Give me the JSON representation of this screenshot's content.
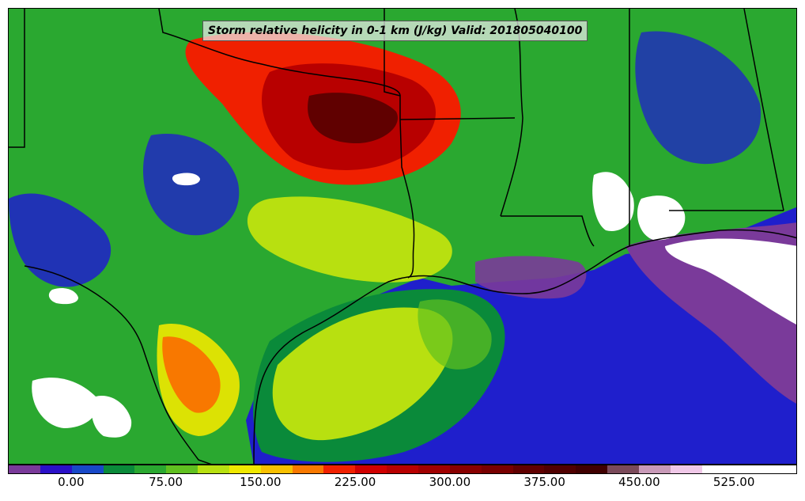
{
  "title": "Storm relative helicity in 0-1 km (J/kg) Valid: 201805040100",
  "colorbar": {
    "colors": [
      "#7a3a9a",
      "#2a10c8",
      "#1848c8",
      "#0a8a3a",
      "#2aa830",
      "#60c020",
      "#b8e010",
      "#f0e800",
      "#f8c000",
      "#f87800",
      "#f02000",
      "#d00000",
      "#b80000",
      "#a00000",
      "#880000",
      "#780000",
      "#600000",
      "#500000",
      "#400000",
      "#7a4a5a",
      "#c89ab8",
      "#f0c8e8",
      "#ffffff",
      "#ffffff",
      "#ffffff"
    ],
    "tick_labels": [
      "0.00",
      "75.00",
      "150.00",
      "225.00",
      "300.00",
      "375.00",
      "450.00",
      "525.00"
    ],
    "value_min": -50,
    "value_max": 575,
    "tick_values": [
      0,
      75,
      150,
      225,
      300,
      375,
      450,
      525
    ]
  }
}
